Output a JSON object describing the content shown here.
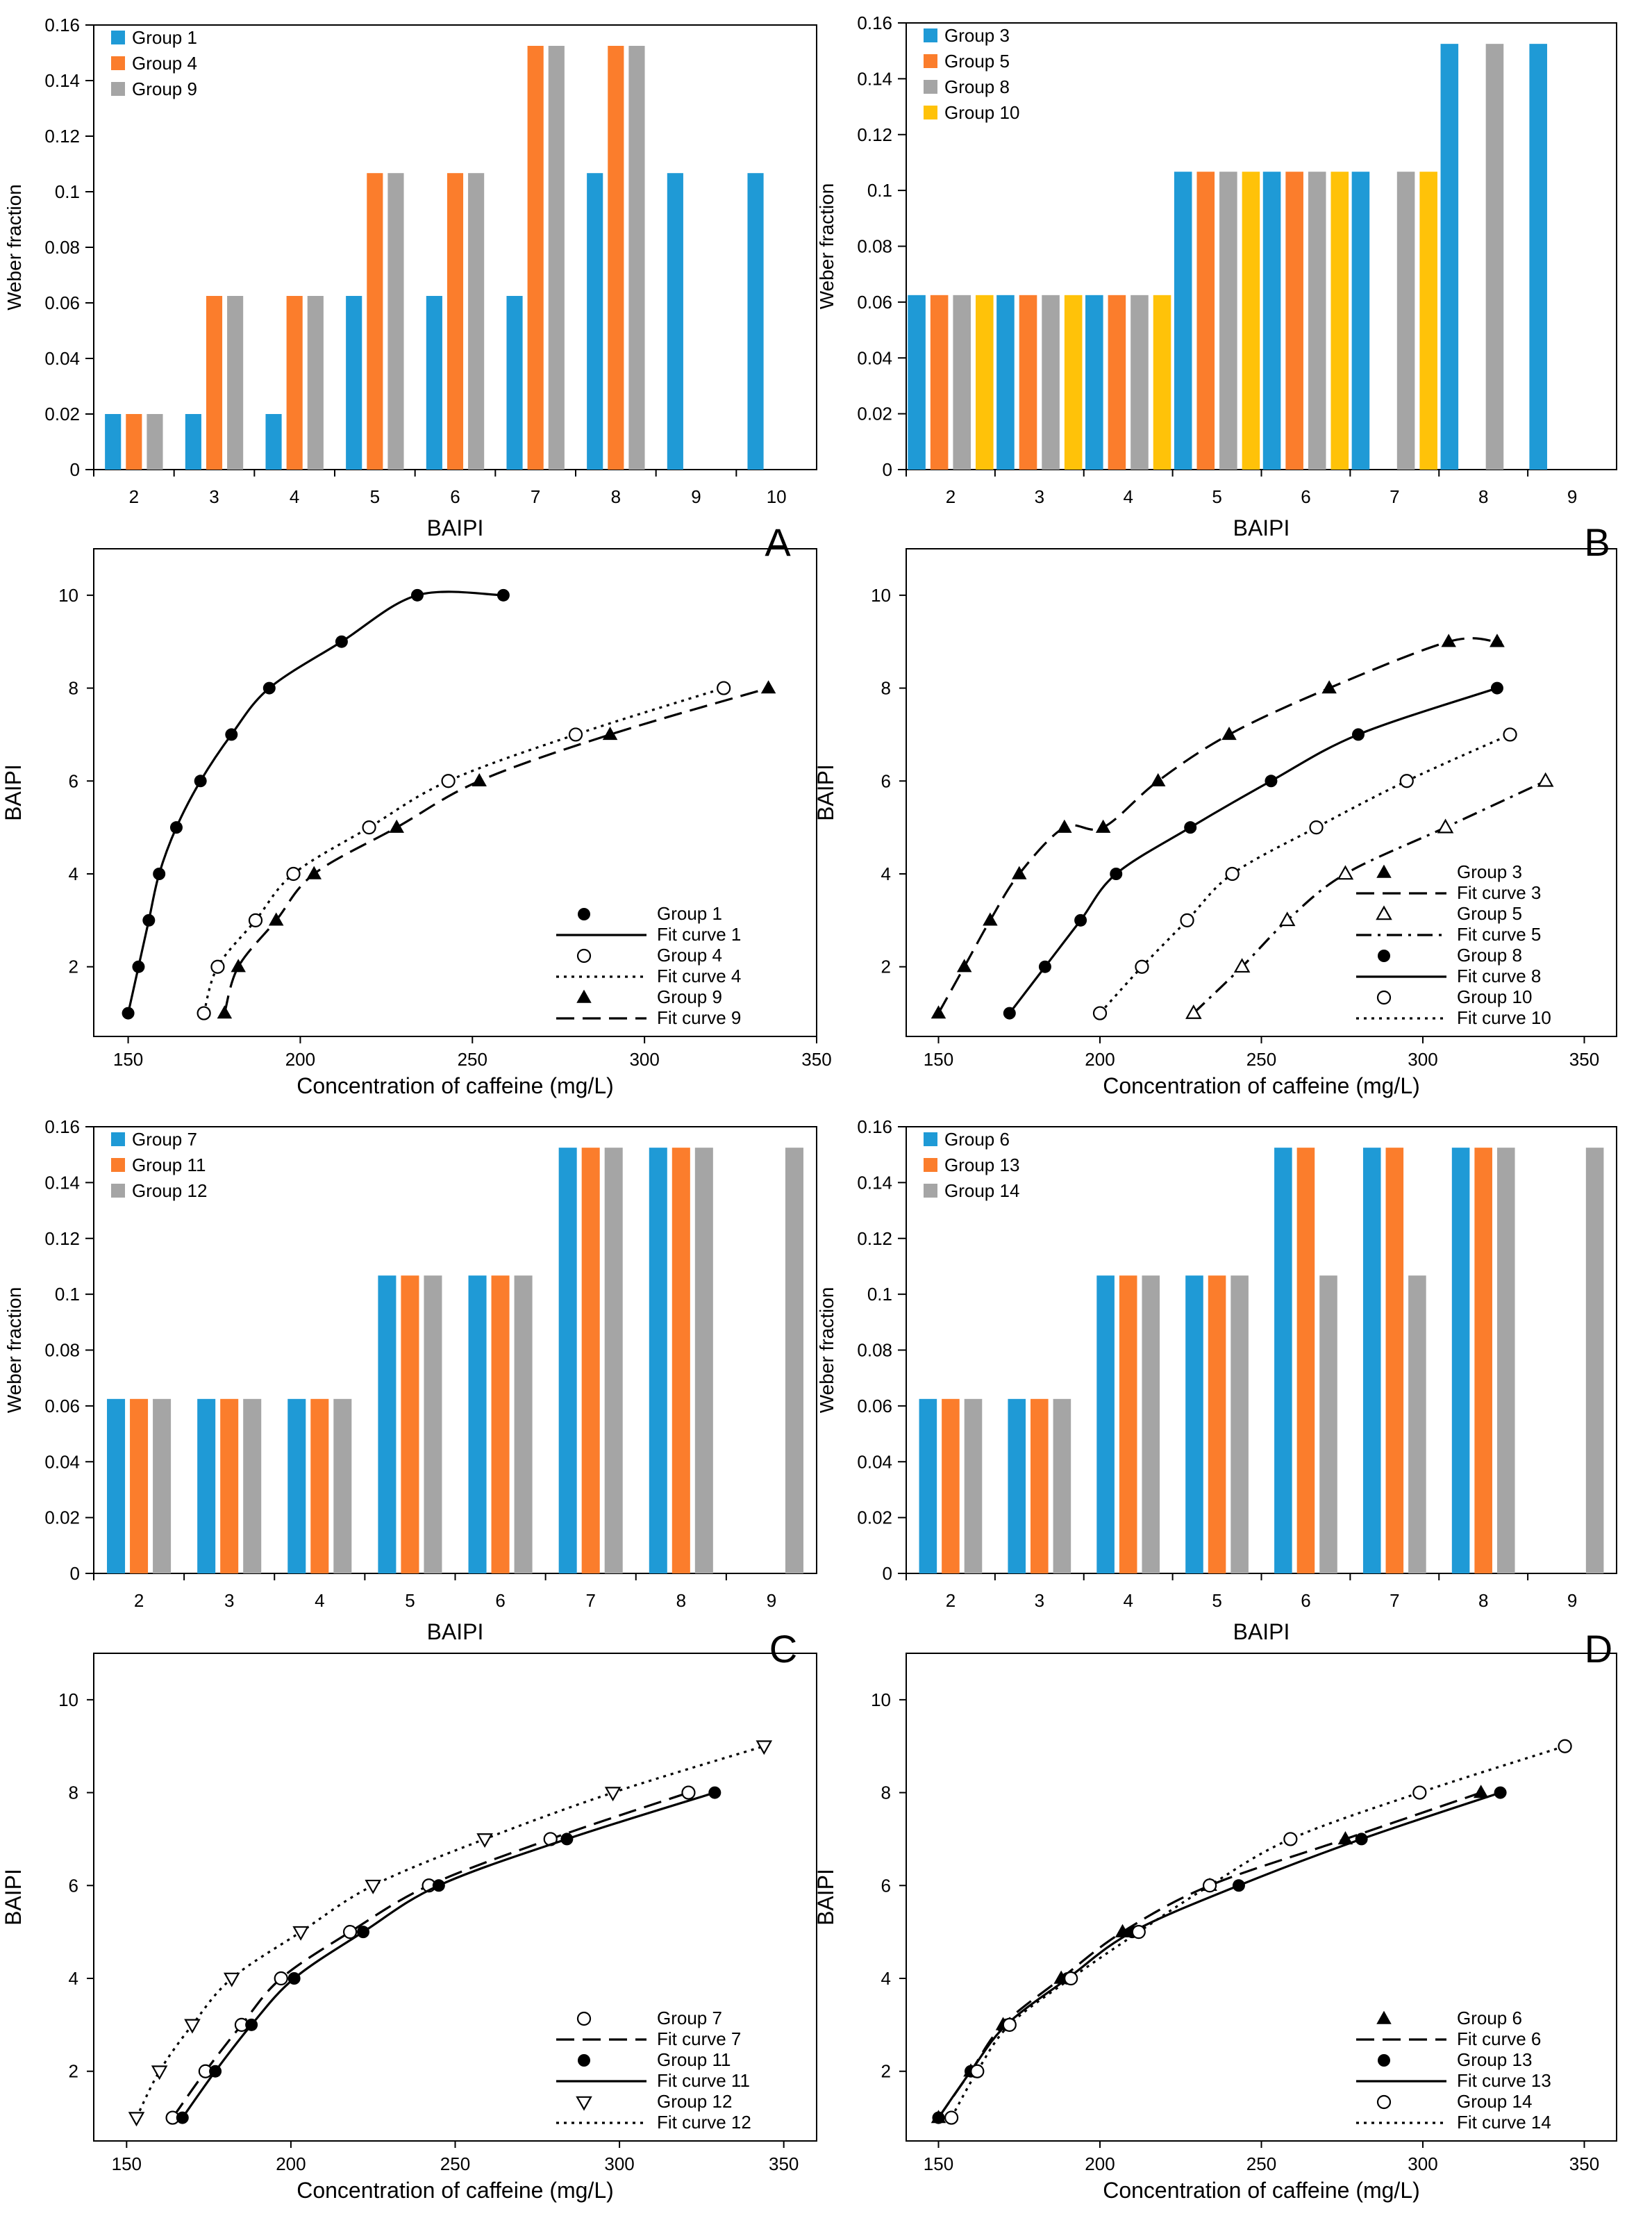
{
  "colors": {
    "blue": "#1f9ad6",
    "orange": "#fb7d2c",
    "gray": "#a5a5a5",
    "yellow": "#ffc209",
    "axis": "#000000"
  },
  "panel_letters": [
    "A",
    "B",
    "C",
    "D"
  ],
  "chart_data": [
    {
      "id": "A-bar",
      "type": "bar",
      "title": "",
      "xlabel": "BAIPI",
      "ylabel": "Weber fraction",
      "categories": [
        "2",
        "3",
        "4",
        "5",
        "6",
        "7",
        "8",
        "9",
        "10"
      ],
      "ylim": [
        0,
        0.16
      ],
      "yticks": [
        "0",
        "0.02",
        "0.04",
        "0.06",
        "0.08",
        "0.1",
        "0.12",
        "0.14",
        "0.16"
      ],
      "legend": "top-left",
      "series": [
        {
          "name": "Group 1",
          "color": "blue",
          "values": [
            0.02,
            0.02,
            0.02,
            0.0625,
            0.0625,
            0.0625,
            0.1067,
            0.1067,
            0.1067
          ]
        },
        {
          "name": "Group 4",
          "color": "orange",
          "values": [
            0.02,
            0.0625,
            0.0625,
            0.1067,
            0.1067,
            0.1525,
            0.1525,
            null,
            null
          ]
        },
        {
          "name": "Group 9",
          "color": "gray",
          "values": [
            0.02,
            0.0625,
            0.0625,
            0.1067,
            0.1067,
            0.1525,
            0.1525,
            null,
            null
          ]
        }
      ]
    },
    {
      "id": "B-bar",
      "type": "bar",
      "title": "",
      "xlabel": "BAIPI",
      "ylabel": "Weber fraction",
      "categories": [
        "2",
        "3",
        "4",
        "5",
        "6",
        "7",
        "8",
        "9"
      ],
      "ylim": [
        0,
        0.16
      ],
      "yticks": [
        "0",
        "0.02",
        "0.04",
        "0.06",
        "0.08",
        "0.1",
        "0.12",
        "0.14",
        "0.16"
      ],
      "legend": "top-left",
      "series": [
        {
          "name": "Group 3",
          "color": "blue",
          "values": [
            0.0625,
            0.0625,
            0.0625,
            0.1067,
            0.1067,
            0.1067,
            0.1525,
            0.1525
          ]
        },
        {
          "name": "Group 5",
          "color": "orange",
          "values": [
            0.0625,
            0.0625,
            0.0625,
            0.1067,
            0.1067,
            null,
            null,
            null
          ]
        },
        {
          "name": "Group 8",
          "color": "gray",
          "values": [
            0.0625,
            0.0625,
            0.0625,
            0.1067,
            0.1067,
            0.1067,
            0.1525,
            null
          ]
        },
        {
          "name": "Group 10",
          "color": "yellow",
          "values": [
            0.0625,
            0.0625,
            0.0625,
            0.1067,
            0.1067,
            0.1067,
            null,
            null
          ]
        }
      ]
    },
    {
      "id": "C-bar",
      "type": "bar",
      "title": "",
      "xlabel": "BAIPI",
      "ylabel": "Weber fraction",
      "categories": [
        "2",
        "3",
        "4",
        "5",
        "6",
        "7",
        "8",
        "9"
      ],
      "ylim": [
        0,
        0.16
      ],
      "yticks": [
        "0",
        "0.02",
        "0.04",
        "0.06",
        "0.08",
        "0.1",
        "0.12",
        "0.14",
        "0.16"
      ],
      "legend": "top-left",
      "series": [
        {
          "name": "Group 7",
          "color": "blue",
          "values": [
            0.0625,
            0.0625,
            0.0625,
            0.1067,
            0.1067,
            0.1525,
            0.1525,
            null
          ]
        },
        {
          "name": "Group 11",
          "color": "orange",
          "values": [
            0.0625,
            0.0625,
            0.0625,
            0.1067,
            0.1067,
            0.1525,
            0.1525,
            null
          ]
        },
        {
          "name": "Group 12",
          "color": "gray",
          "values": [
            0.0625,
            0.0625,
            0.0625,
            0.1067,
            0.1067,
            0.1525,
            0.1525,
            0.1525
          ]
        }
      ]
    },
    {
      "id": "D-bar",
      "type": "bar",
      "title": "",
      "xlabel": "BAIPI",
      "ylabel": "Weber fraction",
      "categories": [
        "2",
        "3",
        "4",
        "5",
        "6",
        "7",
        "8",
        "9"
      ],
      "ylim": [
        0,
        0.16
      ],
      "yticks": [
        "0",
        "0.02",
        "0.04",
        "0.06",
        "0.08",
        "0.1",
        "0.12",
        "0.14",
        "0.16"
      ],
      "legend": "top-left",
      "series": [
        {
          "name": "Group 6",
          "color": "blue",
          "values": [
            0.0625,
            0.0625,
            0.1067,
            0.1067,
            0.1525,
            0.1525,
            0.1525,
            null
          ]
        },
        {
          "name": "Group 13",
          "color": "orange",
          "values": [
            0.0625,
            0.0625,
            0.1067,
            0.1067,
            0.1525,
            0.1525,
            0.1525,
            null
          ]
        },
        {
          "name": "Group 14",
          "color": "gray",
          "values": [
            0.0625,
            0.0625,
            0.1067,
            0.1067,
            0.1067,
            0.1067,
            0.1525,
            0.1525
          ]
        }
      ]
    },
    {
      "id": "A-curve",
      "type": "scatter",
      "title": "",
      "xlabel": "Concentration of caffeine (mg/L)",
      "ylabel": "BAIPI",
      "xlim": [
        140,
        350
      ],
      "ylim": [
        0.5,
        11
      ],
      "xticks": [
        "150",
        "200",
        "250",
        "300",
        "350"
      ],
      "yticks": [
        "2",
        "4",
        "6",
        "8",
        "10"
      ],
      "legend": "bottom-right",
      "series": [
        {
          "name": "Group 1",
          "fit_name": "Fit curve 1",
          "marker": "filled-circle",
          "line": "solid",
          "x": [
            150,
            153,
            156,
            159,
            164,
            171,
            180,
            191,
            212,
            234,
            259
          ],
          "y": [
            1,
            2,
            3,
            4,
            5,
            6,
            7,
            8,
            9,
            10,
            10
          ]
        },
        {
          "name": "Group 4",
          "fit_name": "Fit curve 4",
          "marker": "open-circle",
          "line": "dotted",
          "x": [
            172,
            176,
            187,
            198,
            220,
            243,
            280,
            323
          ],
          "y": [
            1,
            2,
            3,
            4,
            5,
            6,
            7,
            8
          ]
        },
        {
          "name": "Group 9",
          "fit_name": "Fit curve 9",
          "marker": "filled-triangle",
          "line": "dashed",
          "x": [
            178,
            182,
            193,
            204,
            228,
            252,
            290,
            336
          ],
          "y": [
            1,
            2,
            3,
            4,
            5,
            6,
            7,
            8
          ]
        }
      ]
    },
    {
      "id": "B-curve",
      "type": "scatter",
      "title": "",
      "xlabel": "Concentration of caffeine (mg/L)",
      "ylabel": "BAIPI",
      "xlim": [
        140,
        360
      ],
      "ylim": [
        0.5,
        11
      ],
      "xticks": [
        "150",
        "200",
        "250",
        "300",
        "350"
      ],
      "yticks": [
        "2",
        "4",
        "6",
        "8",
        "10"
      ],
      "legend": "bottom-right",
      "series": [
        {
          "name": "Group 3",
          "fit_name": "Fit curve 3",
          "marker": "filled-triangle",
          "line": "dashed",
          "x": [
            150,
            158,
            166,
            175,
            189,
            201,
            218,
            240,
            271,
            308,
            323,
            323
          ],
          "y": [
            1,
            2,
            3,
            4,
            5,
            5,
            6,
            7,
            8,
            9,
            9,
            9
          ]
        },
        {
          "name": "Group 5",
          "fit_name": "Fit curve 5",
          "marker": "open-triangle",
          "line": "dashdot",
          "x": [
            229,
            244,
            258,
            276,
            307,
            338
          ],
          "y": [
            1,
            2,
            3,
            4,
            5,
            6
          ]
        },
        {
          "name": "Group 8",
          "fit_name": "Fit curve 8",
          "marker": "filled-circle",
          "line": "solid",
          "x": [
            172,
            183,
            194,
            205,
            228,
            253,
            280,
            323
          ],
          "y": [
            1,
            2,
            3,
            4,
            5,
            6,
            7,
            8
          ]
        },
        {
          "name": "Group 10",
          "fit_name": "Fit curve 10",
          "marker": "open-circle",
          "line": "dotted",
          "x": [
            200,
            213,
            227,
            241,
            267,
            295,
            327
          ],
          "y": [
            1,
            2,
            3,
            4,
            5,
            6,
            7
          ]
        }
      ]
    },
    {
      "id": "C-curve",
      "type": "scatter",
      "title": "",
      "xlabel": "Concentration of caffeine (mg/L)",
      "ylabel": "BAIPI",
      "xlim": [
        140,
        360
      ],
      "ylim": [
        0.5,
        11
      ],
      "xticks": [
        "150",
        "200",
        "250",
        "300",
        "350"
      ],
      "yticks": [
        "2",
        "4",
        "6",
        "8",
        "10"
      ],
      "legend": "bottom-right",
      "series": [
        {
          "name": "Group 7",
          "fit_name": "Fit curve 7",
          "marker": "open-circle",
          "line": "dashed",
          "x": [
            164,
            174,
            185,
            197,
            218,
            242,
            279,
            321
          ],
          "y": [
            1,
            2,
            3,
            4,
            5,
            6,
            7,
            8
          ]
        },
        {
          "name": "Group 11",
          "fit_name": "Fit curve 11",
          "marker": "filled-circle",
          "line": "solid",
          "x": [
            167,
            177,
            188,
            201,
            222,
            245,
            284,
            329
          ],
          "y": [
            1,
            2,
            3,
            4,
            5,
            6,
            7,
            8
          ]
        },
        {
          "name": "Group 12",
          "fit_name": "Fit curve 12",
          "marker": "open-triangle-down",
          "line": "dotted",
          "x": [
            153,
            160,
            170,
            182,
            203,
            225,
            259,
            298,
            344
          ],
          "y": [
            1,
            2,
            3,
            4,
            5,
            6,
            7,
            8,
            9
          ]
        }
      ]
    },
    {
      "id": "D-curve",
      "type": "scatter",
      "title": "",
      "xlabel": "Concentration of caffeine (mg/L)",
      "ylabel": "BAIPI",
      "xlim": [
        140,
        360
      ],
      "ylim": [
        0.5,
        11
      ],
      "xticks": [
        "150",
        "200",
        "250",
        "300",
        "350"
      ],
      "yticks": [
        "2",
        "4",
        "6",
        "8",
        "10"
      ],
      "legend": "bottom-right",
      "series": [
        {
          "name": "Group 6",
          "fit_name": "Fit curve 6",
          "marker": "filled-triangle",
          "line": "dashed",
          "x": [
            150,
            160,
            170,
            188,
            207,
            234,
            276,
            318
          ],
          "y": [
            1,
            2,
            3,
            4,
            5,
            6,
            7,
            8
          ]
        },
        {
          "name": "Group 13",
          "fit_name": "Fit curve 13",
          "marker": "filled-circle",
          "line": "solid",
          "x": [
            150,
            160,
            171,
            190,
            210,
            243,
            281,
            324
          ],
          "y": [
            1,
            2,
            3,
            4,
            5,
            6,
            7,
            8
          ]
        },
        {
          "name": "Group 14",
          "fit_name": "Fit curve 14",
          "marker": "open-circle",
          "line": "dotted",
          "x": [
            154,
            162,
            172,
            191,
            212,
            234,
            259,
            299,
            344
          ],
          "y": [
            1,
            2,
            3,
            4,
            5,
            6,
            7,
            8,
            9
          ]
        }
      ]
    }
  ]
}
